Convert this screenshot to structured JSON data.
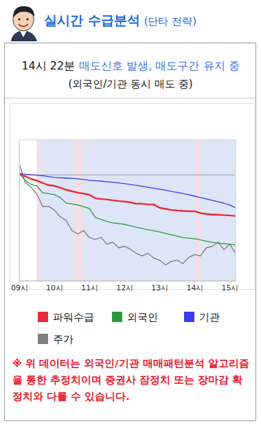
{
  "header": {
    "title": "실시간 수급분석",
    "subtitle": "(단타 전략)"
  },
  "signal": {
    "time": "14시 22분",
    "text": "매도신호 발생, 매도구간 유지 중",
    "detail": "(외국인/기관 동시 매도 중)"
  },
  "chart_data": {
    "type": "line",
    "x": [
      540,
      550,
      560,
      570,
      580,
      590,
      600,
      610,
      620,
      630,
      640,
      650,
      660,
      670,
      680,
      690,
      700,
      710,
      720,
      730,
      740,
      750,
      760,
      770,
      780,
      790,
      800,
      810,
      820,
      830,
      840,
      850,
      860,
      870,
      880,
      890,
      900,
      910
    ],
    "xlim": [
      540,
      910
    ],
    "xticks": [
      {
        "value": 540,
        "label": "09시"
      },
      {
        "value": 600,
        "label": "10시"
      },
      {
        "value": 660,
        "label": "11시"
      },
      {
        "value": 720,
        "label": "12시"
      },
      {
        "value": 780,
        "label": "13시"
      },
      {
        "value": 840,
        "label": "14시"
      },
      {
        "value": 900,
        "label": "15시"
      }
    ],
    "ylim": [
      0,
      100
    ],
    "tick_labels": "x",
    "legend": "bottom",
    "reference_line": {
      "y": 75,
      "color": "#9a9a9a"
    },
    "shaded_regions": [
      {
        "x": [
          570,
          910
        ],
        "color": "#dde5f6"
      },
      {
        "x": [
          570,
          576
        ],
        "color": "#f8dde3"
      },
      {
        "x": [
          636,
          648
        ],
        "color": "#f8dde3"
      },
      {
        "x": [
          843,
          850
        ],
        "color": "#f8dde3"
      }
    ],
    "series": [
      {
        "name": "파워수급",
        "color": "#e8283c",
        "values": [
          75.6,
          74.1,
          72.2,
          71,
          69.3,
          67.8,
          67.3,
          66,
          64.5,
          63.4,
          62.5,
          61.8,
          61,
          58.5,
          58,
          57.6,
          57,
          56.5,
          56.1,
          55.6,
          54.6,
          54.6,
          54.1,
          54.1,
          51.7,
          51,
          50.2,
          49.8,
          49.5,
          49.3,
          49.3,
          48,
          47.3,
          46.8,
          46.8,
          46.5,
          46.3,
          45.9
        ]
      },
      {
        "name": "외국인",
        "color": "#2e9a3e",
        "values": [
          76.1,
          71.2,
          68.3,
          67.3,
          62.4,
          61.8,
          61,
          59,
          55.1,
          54.5,
          53.7,
          52.5,
          51.2,
          44.9,
          43.5,
          42,
          41,
          40.5,
          40,
          39,
          38,
          37.1,
          36.2,
          35.4,
          34.6,
          33.6,
          32.6,
          31.7,
          30.7,
          30.2,
          29.8,
          29,
          28.1,
          27.3,
          26.8,
          26.3,
          25.9,
          25.4
        ]
      },
      {
        "name": "기관",
        "color": "#3b3bf0",
        "values": [
          76,
          75.5,
          75.2,
          74.8,
          74.4,
          73.8,
          73.2,
          73,
          72.8,
          72.6,
          72.3,
          71.8,
          71.2,
          70.9,
          70.6,
          70.2,
          69.8,
          69.3,
          68.8,
          68.2,
          67.6,
          67,
          66.3,
          65.6,
          64.9,
          64.2,
          63.4,
          62.6,
          61.8,
          61,
          60,
          59,
          58,
          57,
          56,
          55,
          53.7,
          51.7
        ]
      },
      {
        "name": "주가",
        "color": "#808080",
        "values": [
          82.9,
          69.8,
          66.3,
          61.5,
          52.7,
          52.7,
          50.2,
          45.4,
          42.9,
          35.6,
          33.2,
          35.6,
          30.7,
          29.3,
          30.7,
          25.9,
          27.3,
          23.4,
          24.4,
          22.4,
          19.5,
          17.6,
          19.5,
          16.1,
          14.6,
          11.2,
          13.7,
          14.6,
          12.2,
          16.6,
          18.5,
          17.6,
          23.4,
          24.4,
          27.3,
          22,
          25.9,
          19.5
        ]
      }
    ]
  },
  "note": "※ 위 데이터는 외국인/기관 매매패턴분석 알고리즘을 통한 추정치이며 증권사 잠정치 또는 장마감 확정치와 다를 수 있습니다."
}
